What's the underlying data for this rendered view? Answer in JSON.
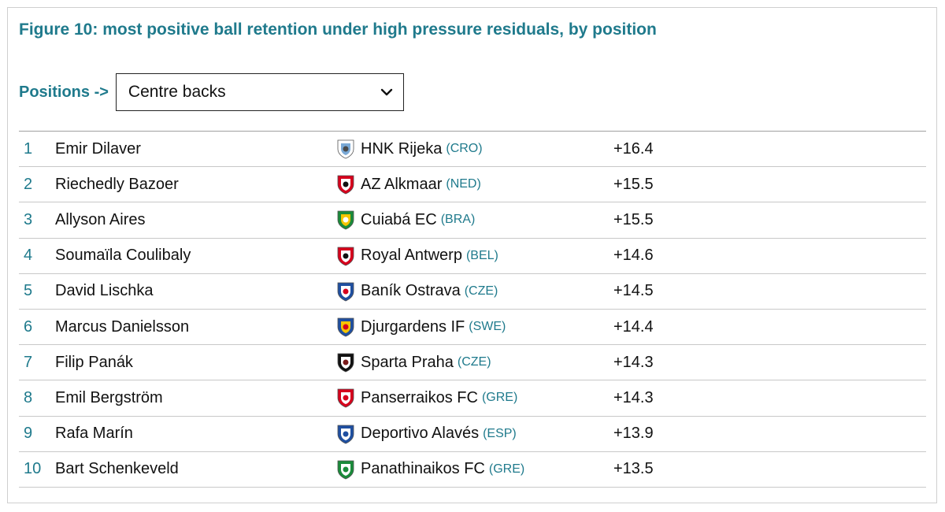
{
  "title": "Figure 10: most positive ball retention under high pressure residuals, by position",
  "positions": {
    "label": "Positions ->",
    "selected": "Centre backs"
  },
  "rows": [
    {
      "rank": "1",
      "player": "Emir Dilaver",
      "club": "HNK Rijeka",
      "country": "(CRO)",
      "value": "+16.4",
      "logo_icon": "hnk-rijeka-crest-icon",
      "colors": [
        "#ffffff",
        "#7aa9d6",
        "#4a4a4a"
      ]
    },
    {
      "rank": "2",
      "player": "Riechedly Bazoer",
      "club": "AZ Alkmaar",
      "country": "(NED)",
      "value": "+15.5",
      "logo_icon": "az-alkmaar-crest-icon",
      "colors": [
        "#d6001c",
        "#ffffff",
        "#111111"
      ]
    },
    {
      "rank": "3",
      "player": "Allyson Aires",
      "club": "Cuiabá EC",
      "country": "(BRA)",
      "value": "+15.5",
      "logo_icon": "cuiaba-ec-crest-icon",
      "colors": [
        "#1a8a3a",
        "#f5c400",
        "#ffffff"
      ]
    },
    {
      "rank": "4",
      "player": "Soumaïla Coulibaly",
      "club": "Royal Antwerp",
      "country": "(BEL)",
      "value": "+14.6",
      "logo_icon": "royal-antwerp-crest-icon",
      "colors": [
        "#d6001c",
        "#ffffff",
        "#111111"
      ]
    },
    {
      "rank": "5",
      "player": "David Lischka",
      "club": "Baník Ostrava",
      "country": "(CZE)",
      "value": "+14.5",
      "logo_icon": "banik-ostrava-crest-icon",
      "colors": [
        "#1f4fa0",
        "#ffffff",
        "#d6001c"
      ]
    },
    {
      "rank": "6",
      "player": "Marcus Danielsson",
      "club": "Djurgardens IF",
      "country": "(SWE)",
      "value": "+14.4",
      "logo_icon": "djurgardens-if-crest-icon",
      "colors": [
        "#1f4fa0",
        "#f5c400",
        "#d6001c"
      ]
    },
    {
      "rank": "7",
      "player": "Filip Panák",
      "club": "Sparta Praha",
      "country": "(CZE)",
      "value": "+14.3",
      "logo_icon": "sparta-praha-crest-icon",
      "colors": [
        "#111111",
        "#ffffff",
        "#7a1a1a"
      ]
    },
    {
      "rank": "8",
      "player": "Emil Bergström",
      "club": "Panserraikos FC",
      "country": "(GRE)",
      "value": "+14.3",
      "logo_icon": "panserraikos-fc-crest-icon",
      "colors": [
        "#d6001c",
        "#ffffff",
        "#d6001c"
      ]
    },
    {
      "rank": "9",
      "player": "Rafa Marín",
      "club": "Deportivo Alavés",
      "country": "(ESP)",
      "value": "+13.9",
      "logo_icon": "deportivo-alaves-crest-icon",
      "colors": [
        "#1f4fa0",
        "#ffffff",
        "#1f4fa0"
      ]
    },
    {
      "rank": "10",
      "player": "Bart Schenkeveld",
      "club": "Panathinaikos FC",
      "country": "(GRE)",
      "value": "+13.5",
      "logo_icon": "panathinaikos-fc-crest-icon",
      "colors": [
        "#1a8a3a",
        "#ffffff",
        "#1a8a3a"
      ]
    }
  ],
  "colors": {
    "accent": "#1f7a8c",
    "text": "#111111",
    "rule": "#c8c8c8",
    "frame": "#cfcfcf"
  }
}
